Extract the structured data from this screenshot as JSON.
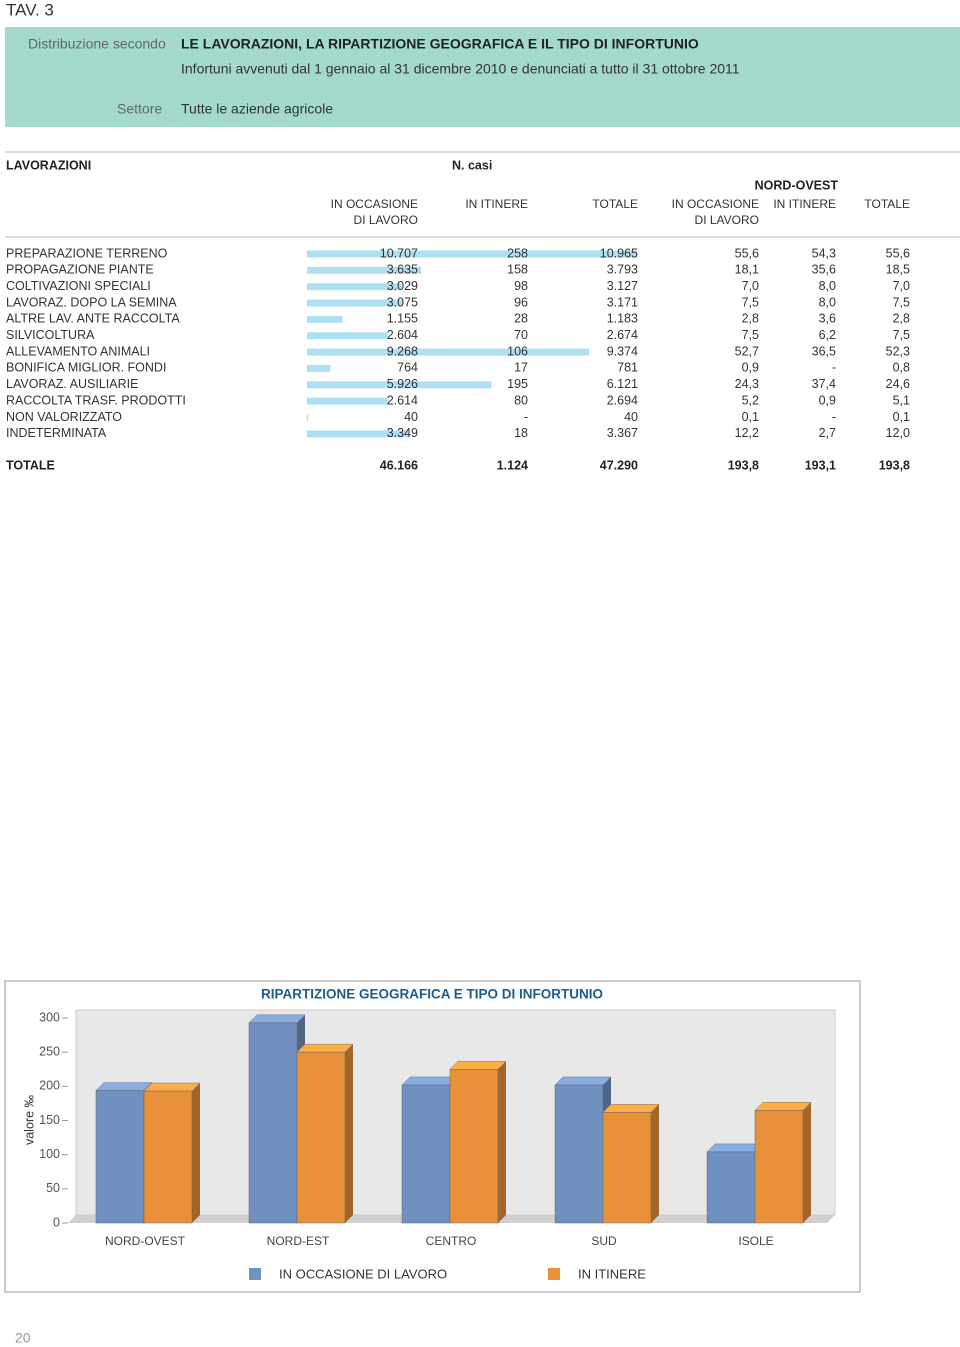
{
  "header": {
    "tav": "TAV. 3",
    "label1": "Distribuzione secondo",
    "title": "LE LAVORAZIONI, LA RIPARTIZIONE GEOGRAFICA E IL TIPO DI INFORTUNIO",
    "subtitle": "Infortuni avvenuti dal 1 gennaio al 31 dicembre 2010 e denunciati a tutto il 31 ottobre 2011",
    "label2": "Settore",
    "sector": "Tutte le aziende agricole"
  },
  "table": {
    "col_lavorazioni": "LAVORAZIONI",
    "group_ncasi": "N. casi",
    "group_region": "NORD-OVEST",
    "columns": [
      [
        "IN OCCASIONE",
        "DI LAVORO"
      ],
      [
        "IN ITINERE"
      ],
      [
        "TOTALE"
      ],
      [
        "IN OCCASIONE",
        "DI LAVORO"
      ],
      [
        "IN ITINERE"
      ],
      [
        "TOTALE"
      ]
    ],
    "rows": [
      [
        "PREPARAZIONE TERRENO",
        "10.707",
        "258",
        "10.965",
        "55,6",
        "54,3",
        "55,6"
      ],
      [
        "PROPAGAZIONE PIANTE",
        "3.635",
        "158",
        "3.793",
        "18,1",
        "35,6",
        "18,5"
      ],
      [
        "COLTIVAZIONI SPECIALI",
        "3.029",
        "98",
        "3.127",
        "7,0",
        "8,0",
        "7,0"
      ],
      [
        "LAVORAZ. DOPO LA SEMINA",
        "3.075",
        "96",
        "3.171",
        "7,5",
        "8,0",
        "7,5"
      ],
      [
        "ALTRE LAV. ANTE RACCOLTA",
        "1.155",
        "28",
        "1.183",
        "2,8",
        "3,6",
        "2,8"
      ],
      [
        "SILVICOLTURA",
        "2.604",
        "70",
        "2.674",
        "7,5",
        "6,2",
        "7,5"
      ],
      [
        "ALLEVAMENTO ANIMALI",
        "9.268",
        "106",
        "9.374",
        "52,7",
        "36,5",
        "52,3"
      ],
      [
        "BONIFICA MIGLIOR. FONDI",
        "764",
        "17",
        "781",
        "0,9",
        "-",
        "0,8"
      ],
      [
        "LAVORAZ. AUSILIARIE",
        "5.926",
        "195",
        "6.121",
        "24,3",
        "37,4",
        "24,6"
      ],
      [
        "RACCOLTA TRASF. PRODOTTI",
        "2.614",
        "80",
        "2.694",
        "5,2",
        "0,9",
        "5,1"
      ],
      [
        "NON VALORIZZATO",
        "40",
        "-",
        "40",
        "0,1",
        "-",
        "0,1"
      ],
      [
        "INDETERMINATA",
        "3.349",
        "18",
        "3.367",
        "12,2",
        "2,7",
        "12,0"
      ]
    ],
    "total": [
      "TOTALE",
      "46.166",
      "1.124",
      "47.290",
      "193,8",
      "193,1",
      "193,8"
    ]
  },
  "chart_data": {
    "type": "bar",
    "title": "RIPARTIZIONE GEOGRAFICA E TIPO DI INFORTUNIO",
    "ylabel": "valore ‰",
    "categories": [
      "NORD-OVEST",
      "NORD-EST",
      "CENTRO",
      "SUD",
      "ISOLE"
    ],
    "series": [
      {
        "name": "IN OCCASIONE DI LAVORO",
        "color": "#7090bf",
        "values": [
          193.8,
          293,
          202,
          202,
          104
        ]
      },
      {
        "name": "IN ITINERE",
        "color": "#e8913a",
        "values": [
          193.1,
          250,
          225,
          162,
          165
        ]
      }
    ],
    "ylim": [
      0,
      300
    ],
    "yticks": [
      0,
      50,
      100,
      150,
      200,
      250,
      300
    ]
  },
  "page_number": "20"
}
